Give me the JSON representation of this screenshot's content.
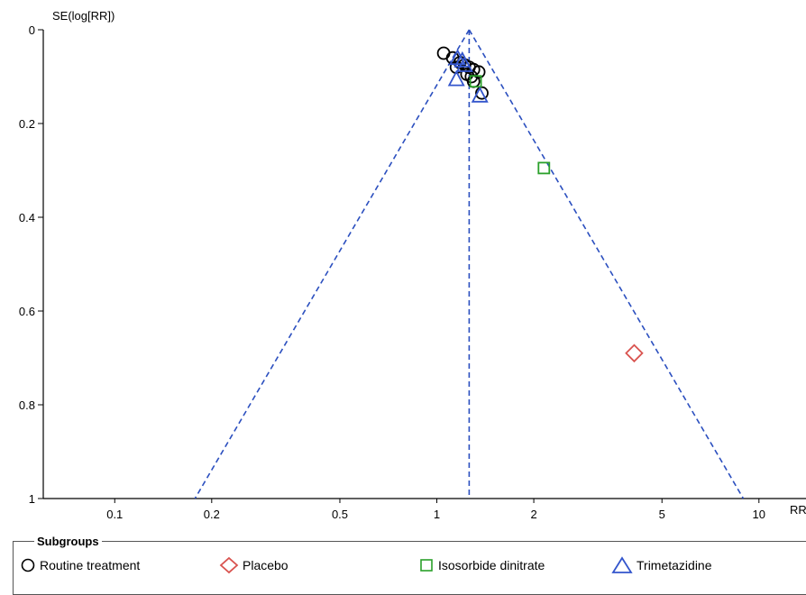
{
  "chart_data": {
    "type": "scatter",
    "subtype": "funnel-plot",
    "ylabel": "SE(log[RR])",
    "xlabel": "RR",
    "x_scale": "log",
    "xlim": [
      0.06,
      14
    ],
    "ylim": [
      0,
      1
    ],
    "y_inverted": true,
    "x_ticks": [
      "0.1",
      "0.2",
      "0.5",
      "1",
      "2",
      "5",
      "10"
    ],
    "x_tick_values": [
      0.1,
      0.2,
      0.5,
      1,
      2,
      5,
      10
    ],
    "y_ticks": [
      "0",
      "0.2",
      "0.4",
      "0.6",
      "0.8",
      "1"
    ],
    "y_tick_values": [
      0,
      0.2,
      0.4,
      0.6,
      0.8,
      1
    ],
    "pooled_estimate": 1.26,
    "line_color": "#2b4fbf",
    "legend": {
      "title": "Subgroups",
      "items": [
        {
          "label": "Routine treatment",
          "marker": "circle",
          "color": "#000000"
        },
        {
          "label": "Placebo",
          "marker": "diamond",
          "color": "#d9534f"
        },
        {
          "label": "Isosorbide dinitrate",
          "marker": "square",
          "color": "#2aa02a"
        },
        {
          "label": "Trimetazidine",
          "marker": "triangle",
          "color": "#3355cc"
        }
      ]
    },
    "series": [
      {
        "name": "Routine treatment",
        "marker": "circle",
        "color": "#000000",
        "points": [
          {
            "x": 1.05,
            "y": 0.05
          },
          {
            "x": 1.12,
            "y": 0.06
          },
          {
            "x": 1.18,
            "y": 0.07
          },
          {
            "x": 1.22,
            "y": 0.075
          },
          {
            "x": 1.26,
            "y": 0.08
          },
          {
            "x": 1.3,
            "y": 0.085
          },
          {
            "x": 1.35,
            "y": 0.09
          },
          {
            "x": 1.15,
            "y": 0.08
          },
          {
            "x": 1.24,
            "y": 0.095
          },
          {
            "x": 1.28,
            "y": 0.1
          },
          {
            "x": 1.3,
            "y": 0.11
          },
          {
            "x": 1.38,
            "y": 0.135
          }
        ]
      },
      {
        "name": "Placebo",
        "marker": "diamond",
        "color": "#d9534f",
        "points": [
          {
            "x": 4.1,
            "y": 0.69
          }
        ]
      },
      {
        "name": "Isosorbide dinitrate",
        "marker": "square",
        "color": "#2aa02a",
        "points": [
          {
            "x": 2.15,
            "y": 0.295
          },
          {
            "x": 1.32,
            "y": 0.11
          }
        ]
      },
      {
        "name": "Trimetazidine",
        "marker": "triangle",
        "color": "#3355cc",
        "points": [
          {
            "x": 1.16,
            "y": 0.06
          },
          {
            "x": 1.2,
            "y": 0.065
          },
          {
            "x": 1.22,
            "y": 0.075
          },
          {
            "x": 1.15,
            "y": 0.105
          },
          {
            "x": 1.36,
            "y": 0.14
          }
        ]
      }
    ]
  }
}
